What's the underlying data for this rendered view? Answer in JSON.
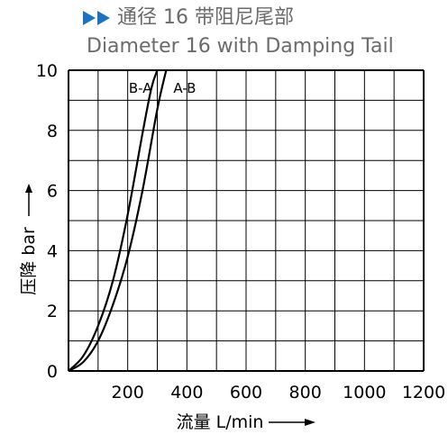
{
  "header": {
    "title_cn": "通径 16 带阻尼尾部",
    "title_en": "Diameter 16 with Damping Tail",
    "arrow_color": "#1e73be",
    "arrow_icon": "double-chevron-right-icon"
  },
  "chart_data": {
    "type": "line",
    "title": "通径 16 带阻尼尾部",
    "subtitle": "Diameter 16 with Damping Tail",
    "xlabel": "流量 L/min",
    "ylabel": "压降 bar",
    "xlim": [
      0,
      1200
    ],
    "ylim": [
      0,
      10
    ],
    "x_ticks": [
      200,
      400,
      600,
      800,
      1000,
      1200
    ],
    "y_ticks": [
      0,
      2,
      4,
      6,
      8,
      10
    ],
    "x_grid_step": 100,
    "y_grid_step": 1,
    "grid": true,
    "legend": "inline labels near top",
    "series": [
      {
        "name": "B-A",
        "x": [
          0,
          50,
          100,
          150,
          200,
          250,
          280,
          300
        ],
        "y": [
          0,
          0.5,
          1.5,
          3.0,
          5.2,
          7.9,
          9.4,
          10.0
        ]
      },
      {
        "name": "A-B",
        "x": [
          0,
          50,
          100,
          150,
          200,
          250,
          300,
          330
        ],
        "y": [
          0,
          0.3,
          1.0,
          2.2,
          3.8,
          6.0,
          8.7,
          10.0
        ]
      }
    ]
  }
}
